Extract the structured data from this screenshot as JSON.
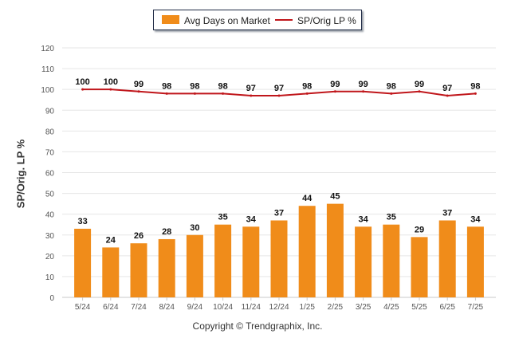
{
  "legend": {
    "bar_label": "Avg Days on Market",
    "line_label": "SP/Orig LP %"
  },
  "ylabel": "SP/Orig. LP %",
  "footer": "Copyright © Trendgraphix, Inc.",
  "colors": {
    "bar": "#f08c1a",
    "line": "#c0161b",
    "grid": "#e6e6e6",
    "axis_text": "#555555",
    "label_text": "#111111"
  },
  "chart_data": {
    "type": "bar+line",
    "categories": [
      "5/24",
      "6/24",
      "7/24",
      "8/24",
      "9/24",
      "10/24",
      "11/24",
      "12/24",
      "1/25",
      "2/25",
      "3/25",
      "4/25",
      "5/25",
      "6/25",
      "7/25"
    ],
    "series": [
      {
        "name": "Avg Days on Market",
        "type": "bar",
        "values": [
          33,
          24,
          26,
          28,
          30,
          35,
          34,
          37,
          44,
          45,
          34,
          35,
          29,
          37,
          34
        ]
      },
      {
        "name": "SP/Orig LP %",
        "type": "line",
        "values": [
          100,
          100,
          99,
          98,
          98,
          98,
          97,
          97,
          98,
          99,
          99,
          98,
          99,
          97,
          98
        ]
      }
    ],
    "ylabel": "SP/Orig. LP %",
    "ylim": [
      0,
      120
    ],
    "yticks": [
      0,
      10,
      20,
      30,
      40,
      50,
      60,
      70,
      80,
      90,
      100,
      110,
      120
    ],
    "grid": true,
    "legend_position": "top-center"
  }
}
